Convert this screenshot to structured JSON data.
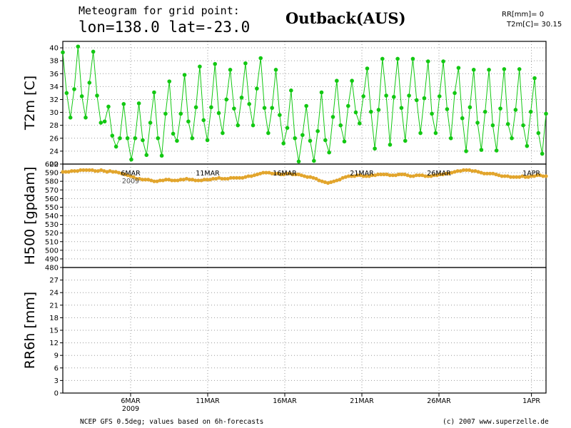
{
  "header": {
    "line1": "Meteogram for grid point:",
    "line2": "lon=138.0  lat=-23.0",
    "station": "Outback(AUS)",
    "rr_now": "RR[mm]= 0",
    "t2m_now": "T2m[C]= 30.15"
  },
  "footer": {
    "source": "NCEP GFS 0.5deg; values based on 6h-forecasts",
    "credit": "(c) 2007 www.superzelle.de"
  },
  "colors": {
    "t2m": "#12c812",
    "h500": "#e2a52c",
    "grid": "#9a9a9a",
    "axis": "#000000"
  },
  "chart_data": [
    {
      "type": "line",
      "ylabel": "T2m [C]",
      "ylim": [
        22,
        41
      ],
      "yticks": [
        22,
        24,
        26,
        28,
        30,
        32,
        34,
        36,
        38,
        40
      ],
      "grid": true,
      "series": [
        {
          "values": [
            39.3,
            33.0,
            29.2,
            33.6,
            40.2,
            32.5,
            29.2,
            34.6,
            39.4,
            32.6,
            28.4,
            28.6,
            30.9,
            26.4,
            24.7,
            26.0,
            31.3,
            26.0,
            22.7,
            26.0,
            31.4,
            25.7,
            23.4,
            28.4,
            33.1,
            26.0,
            23.3,
            29.8,
            34.8,
            26.7,
            25.6,
            29.8,
            35.8,
            28.6,
            26.0,
            30.8,
            37.1,
            28.8,
            25.7,
            30.8,
            37.5,
            29.9,
            26.8,
            32.0,
            36.6,
            30.6,
            28.0,
            32.3,
            37.6,
            31.3,
            28.0,
            33.7,
            38.4,
            30.7,
            26.8,
            30.7,
            36.6,
            29.6,
            25.2,
            27.6,
            33.4,
            26.0,
            22.4,
            26.5,
            31.0,
            25.6,
            22.5,
            27.1,
            33.1,
            25.7,
            23.8,
            29.3,
            34.9,
            28.0,
            25.5,
            31.0,
            34.9,
            30.0,
            28.3,
            32.5,
            36.8,
            30.1,
            24.4,
            30.4,
            38.3,
            32.6,
            25.0,
            32.4,
            38.3,
            30.7,
            25.6,
            32.6,
            38.3,
            31.9,
            26.8,
            32.2,
            37.9,
            29.8,
            26.8,
            32.5,
            37.9,
            30.5,
            26.0,
            33.0,
            36.9,
            29.1,
            24.0,
            30.8,
            36.6,
            28.4,
            24.2,
            30.1,
            36.6,
            28.0,
            24.1,
            30.6,
            36.7,
            28.2,
            26.0,
            30.4,
            36.7,
            28.0,
            24.8,
            30.1,
            35.3,
            26.8,
            23.6,
            29.8
          ]
        }
      ]
    },
    {
      "type": "scatter",
      "ylabel": "H500 [gpdam]",
      "ylim": [
        480,
        600
      ],
      "yticks": [
        480,
        490,
        500,
        510,
        520,
        530,
        540,
        550,
        560,
        570,
        580,
        590,
        600
      ],
      "grid": true,
      "series": [
        {
          "values": [
            591,
            591,
            591,
            592,
            592,
            592,
            593,
            593,
            593,
            593,
            593,
            592,
            592,
            593,
            592,
            591,
            592,
            591,
            591,
            590,
            589,
            588,
            587,
            586,
            585,
            583,
            583,
            582,
            582,
            582,
            581,
            580,
            580,
            581,
            581,
            582,
            582,
            581,
            581,
            581,
            582,
            582,
            583,
            582,
            582,
            581,
            581,
            581,
            582,
            582,
            582,
            583,
            583,
            584,
            583,
            583,
            583,
            584,
            584,
            584,
            584,
            584,
            585,
            586,
            586,
            587,
            588,
            589,
            590,
            590,
            590,
            589,
            589,
            589,
            588,
            588,
            589,
            589,
            588,
            588,
            588,
            587,
            586,
            585,
            585,
            584,
            583,
            581,
            580,
            579,
            578,
            579,
            580,
            581,
            582,
            584,
            585,
            586,
            586,
            586,
            587,
            587,
            586,
            586,
            586,
            587,
            587,
            588,
            588,
            588,
            588,
            587,
            587,
            587,
            588,
            588,
            588,
            587,
            586,
            586,
            587,
            587,
            587,
            586,
            586,
            586,
            587,
            587,
            588,
            588,
            589,
            589,
            590,
            591,
            592,
            592,
            593,
            593,
            593,
            592,
            592,
            591,
            590,
            589,
            589,
            589,
            589,
            588,
            587,
            586,
            586,
            586,
            585,
            585,
            585,
            585,
            586,
            585,
            585,
            586,
            586,
            587,
            587,
            586,
            586
          ]
        }
      ]
    },
    {
      "type": "bar",
      "ylabel": "RR6h [mm]",
      "ylim": [
        0,
        30
      ],
      "yticks": [
        0,
        3,
        6,
        9,
        12,
        15,
        18,
        21,
        24,
        27
      ],
      "grid": true,
      "series": [
        {
          "values": []
        }
      ]
    }
  ],
  "x_axis": {
    "ticks": [
      "6MAR",
      "11MAR",
      "16MAR",
      "21MAR",
      "26MAR",
      "1APR"
    ],
    "year_label": "2009",
    "overlap_label": "2009"
  }
}
